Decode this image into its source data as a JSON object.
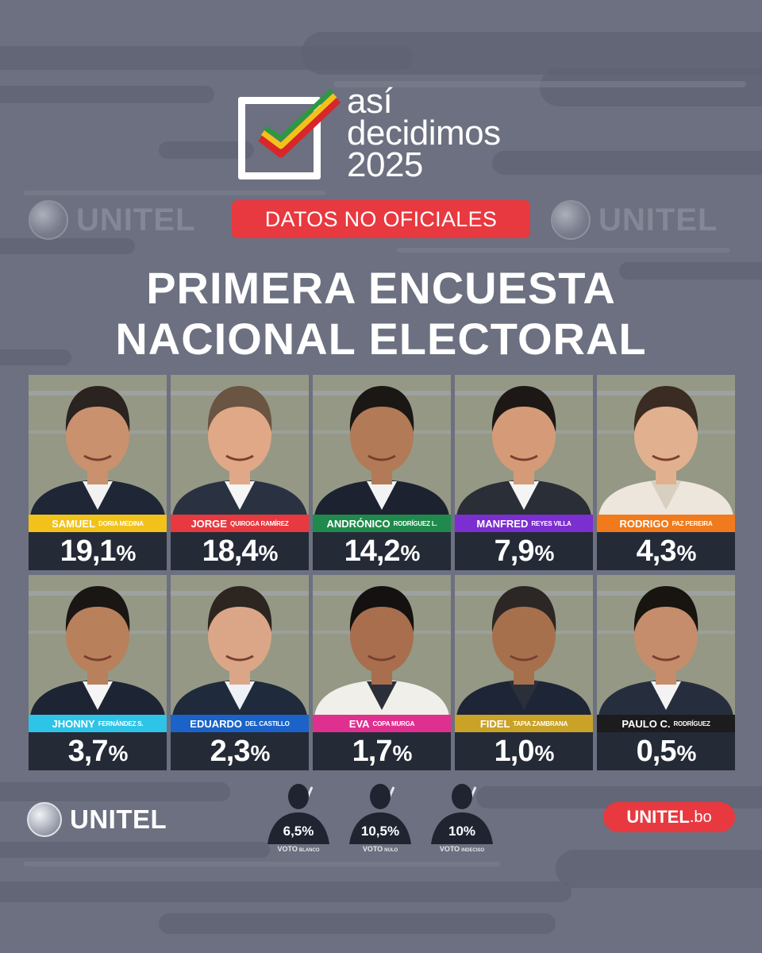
{
  "header": {
    "logo_lines": [
      "así",
      "decidimos",
      "2025"
    ],
    "watermark": "UNITEL",
    "badge": "DATOS NO OFICIALES",
    "title_line1": "PRIMERA ENCUESTA",
    "title_line2": "NACIONAL ELECTORAL"
  },
  "chart_data": {
    "type": "table",
    "title": "PRIMERA ENCUESTA NACIONAL ELECTORAL",
    "candidates": [
      {
        "first": "SAMUEL",
        "last": "DORIA MEDINA",
        "value": "19,1",
        "percent": 19.1,
        "color": "#f2c21b"
      },
      {
        "first": "JORGE",
        "last": "QUIROGA RAMÍREZ",
        "value": "18,4",
        "percent": 18.4,
        "color": "#e7393f"
      },
      {
        "first": "ANDRÓNICO",
        "last": "RODRÍGUEZ L.",
        "value": "14,2",
        "percent": 14.2,
        "color": "#1f8a4c"
      },
      {
        "first": "MANFRED",
        "last": "REYES VILLA",
        "value": "7,9",
        "percent": 7.9,
        "color": "#7b2fd0"
      },
      {
        "first": "RODRIGO",
        "last": "PAZ PEREIRA",
        "value": "4,3",
        "percent": 4.3,
        "color": "#f07a1c"
      },
      {
        "first": "JHONNY",
        "last": "FERNÁNDEZ S.",
        "value": "3,7",
        "percent": 3.7,
        "color": "#2ec4e8"
      },
      {
        "first": "EDUARDO",
        "last": "DEL CASTILLO",
        "value": "2,3",
        "percent": 2.3,
        "color": "#1b63c8"
      },
      {
        "first": "EVA",
        "last": "COPA MURGA",
        "value": "1,7",
        "percent": 1.7,
        "color": "#e0308f"
      },
      {
        "first": "FIDEL",
        "last": "TAPIA ZAMBRANA",
        "value": "1,0",
        "percent": 1.0,
        "color": "#c9a227"
      },
      {
        "first": "PAULO C.",
        "last": "RODRÍGUEZ",
        "value": "0,5",
        "percent": 0.5,
        "color": "#1c1c1c"
      }
    ],
    "others": [
      {
        "label": "VOTO",
        "sub": "BLANCO",
        "value": "6,5",
        "percent": 6.5
      },
      {
        "label": "VOTO",
        "sub": "NULO",
        "value": "10,5",
        "percent": 10.5
      },
      {
        "label": "VOTO",
        "sub": "INDECISO",
        "value": "10",
        "percent": 10
      }
    ],
    "percent_symbol": "%"
  },
  "footer": {
    "brand": "UNITEL",
    "site_brand": "UNITEL",
    "site_domain": ".bo"
  },
  "colors": {
    "background": "#6c7080",
    "accent_red": "#e7393f",
    "panel_dark": "#252a37"
  },
  "palette": {
    "skin": [
      "#c9916d",
      "#e0a886",
      "#b27a56",
      "#d59b78",
      "#e1b08f",
      "#b9805c",
      "#dba687",
      "#a86e4d",
      "#a7704d",
      "#c58d6b"
    ],
    "hair": [
      "#2a2320",
      "#6a5442",
      "#1b1714",
      "#1d1815",
      "#3a2c22",
      "#1a1614",
      "#2d2520",
      "#141110",
      "#2c2724",
      "#18140f"
    ],
    "suit": [
      "#1f2736",
      "#2a3242",
      "#1c2230",
      "#2a2e36",
      "#ece6dd",
      "#1d2433",
      "#1f2a3c",
      "#f1efe9",
      "#1e2536",
      "#262e3e"
    ],
    "shirt": [
      "#f2f2f2",
      "#f5f5f5",
      "#f3f3f3",
      "#f4f4f4",
      "#d8cfc0",
      "#f5f5f5",
      "#eef2f7",
      "#2a2f3a",
      "#2a2f3a",
      "#f3f3f3"
    ]
  }
}
